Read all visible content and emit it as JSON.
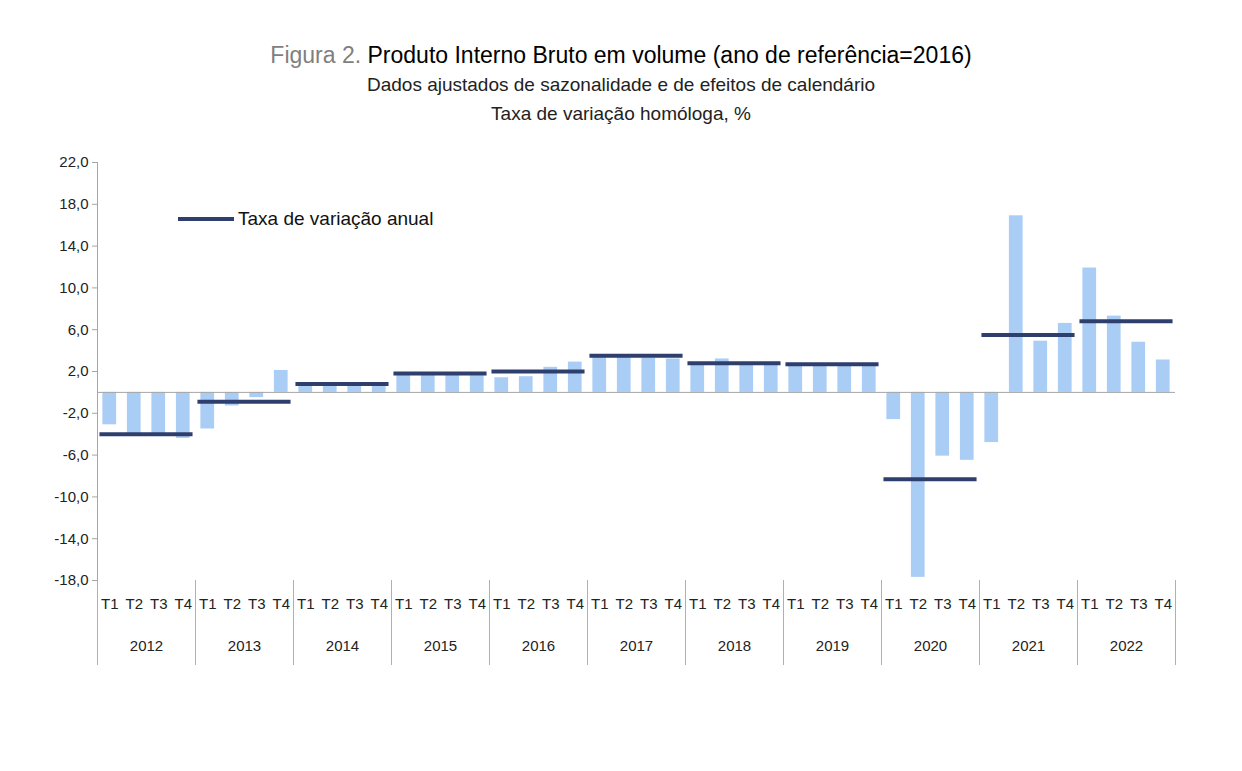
{
  "chart_data": {
    "type": "bar",
    "figure_label": "Figura 2.",
    "title": "Produto Interno Bruto em volume (ano de referência=2016)",
    "subtitle": [
      "Dados ajustados de sazonalidade e de efeitos de calendário",
      "Taxa de variação homóloga, %"
    ],
    "categories": [
      "T1",
      "T2",
      "T3",
      "T4",
      "T1",
      "T2",
      "T3",
      "T4",
      "T1",
      "T2",
      "T3",
      "T4",
      "T1",
      "T2",
      "T3",
      "T4",
      "T1",
      "T2",
      "T3",
      "T4",
      "T1",
      "T2",
      "T3",
      "T4",
      "T1",
      "T2",
      "T3",
      "T4",
      "T1",
      "T2",
      "T3",
      "T4",
      "T1",
      "T2",
      "T3",
      "T4",
      "T1",
      "T2",
      "T3",
      "T4",
      "T1",
      "T2",
      "T3",
      "T4"
    ],
    "year_labels": [
      "2012",
      "2013",
      "2014",
      "2015",
      "2016",
      "2017",
      "2018",
      "2019",
      "2020",
      "2021",
      "2022"
    ],
    "values": [
      -3.1,
      -4.0,
      -4.1,
      -4.4,
      -3.5,
      -1.3,
      -0.5,
      2.1,
      0.8,
      0.8,
      0.7,
      0.7,
      1.9,
      1.8,
      1.8,
      1.6,
      1.4,
      1.5,
      2.4,
      2.9,
      3.5,
      3.6,
      3.3,
      3.2,
      2.8,
      3.2,
      2.7,
      2.6,
      2.7,
      2.7,
      2.7,
      2.7,
      -2.6,
      -17.7,
      -6.1,
      -6.5,
      -4.8,
      16.9,
      4.9,
      6.6,
      11.9,
      7.3,
      4.8,
      3.1
    ],
    "color": "#a9cdf5",
    "annual": {
      "name": "Taxa de variação anual",
      "color": "#2e3f6e",
      "values": [
        -4.0,
        -0.9,
        0.8,
        1.8,
        2.0,
        3.5,
        2.8,
        2.7,
        -8.3,
        5.5,
        6.8
      ]
    },
    "ylim": [
      -18,
      22
    ],
    "yticks": [
      {
        "value": -18,
        "label": "-18,0"
      },
      {
        "value": -14,
        "label": "-14,0"
      },
      {
        "value": -10,
        "label": "-10,0"
      },
      {
        "value": -6,
        "label": "-6,0"
      },
      {
        "value": -2,
        "label": "-2,0"
      },
      {
        "value": 2,
        "label": "2,0"
      },
      {
        "value": 6,
        "label": "6,0"
      },
      {
        "value": 10,
        "label": "10,0"
      },
      {
        "value": 14,
        "label": "14,0"
      },
      {
        "value": 18,
        "label": "18,0"
      },
      {
        "value": 22,
        "label": "22,0"
      }
    ],
    "grid": false,
    "legend": "top-left"
  }
}
